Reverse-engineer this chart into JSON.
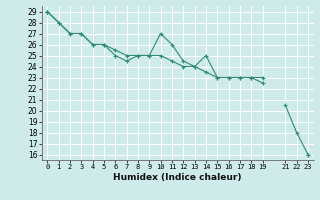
{
  "xlabel": "Humidex (Indice chaleur)",
  "ylabel": "",
  "bg_color": "#ceeaea",
  "grid_color": "#ffffff",
  "line_color": "#2e8b74",
  "xlim": [
    -0.5,
    23.5
  ],
  "ylim": [
    15.5,
    29.5
  ],
  "xtick_positions": [
    0,
    1,
    2,
    3,
    4,
    5,
    6,
    7,
    8,
    9,
    10,
    11,
    12,
    13,
    14,
    15,
    16,
    17,
    18,
    19,
    21,
    22,
    23
  ],
  "xtick_labels": [
    "0",
    "1",
    "2",
    "3",
    "4",
    "5",
    "6",
    "7",
    "8",
    "9",
    "10",
    "11",
    "12",
    "13",
    "14",
    "15",
    "16",
    "17",
    "18",
    "19",
    "21",
    "22",
    "23"
  ],
  "ytick_positions": [
    16,
    17,
    18,
    19,
    20,
    21,
    22,
    23,
    24,
    25,
    26,
    27,
    28,
    29
  ],
  "series": [
    [
      29,
      28,
      27,
      27,
      26,
      26,
      25,
      24.5,
      25,
      25,
      27,
      26,
      24.5,
      24,
      25,
      23,
      23,
      23,
      23,
      22.5,
      null,
      20.5,
      18,
      16
    ],
    [
      29,
      28,
      27,
      27,
      26,
      26,
      25.5,
      25,
      25,
      25,
      25,
      24.5,
      24,
      24,
      23.5,
      23,
      23,
      23,
      23,
      23,
      null,
      null,
      null,
      null
    ],
    [
      29,
      null,
      null,
      null,
      null,
      null,
      null,
      null,
      null,
      null,
      null,
      null,
      null,
      null,
      null,
      null,
      null,
      null,
      null,
      null,
      null,
      null,
      null,
      16
    ]
  ]
}
